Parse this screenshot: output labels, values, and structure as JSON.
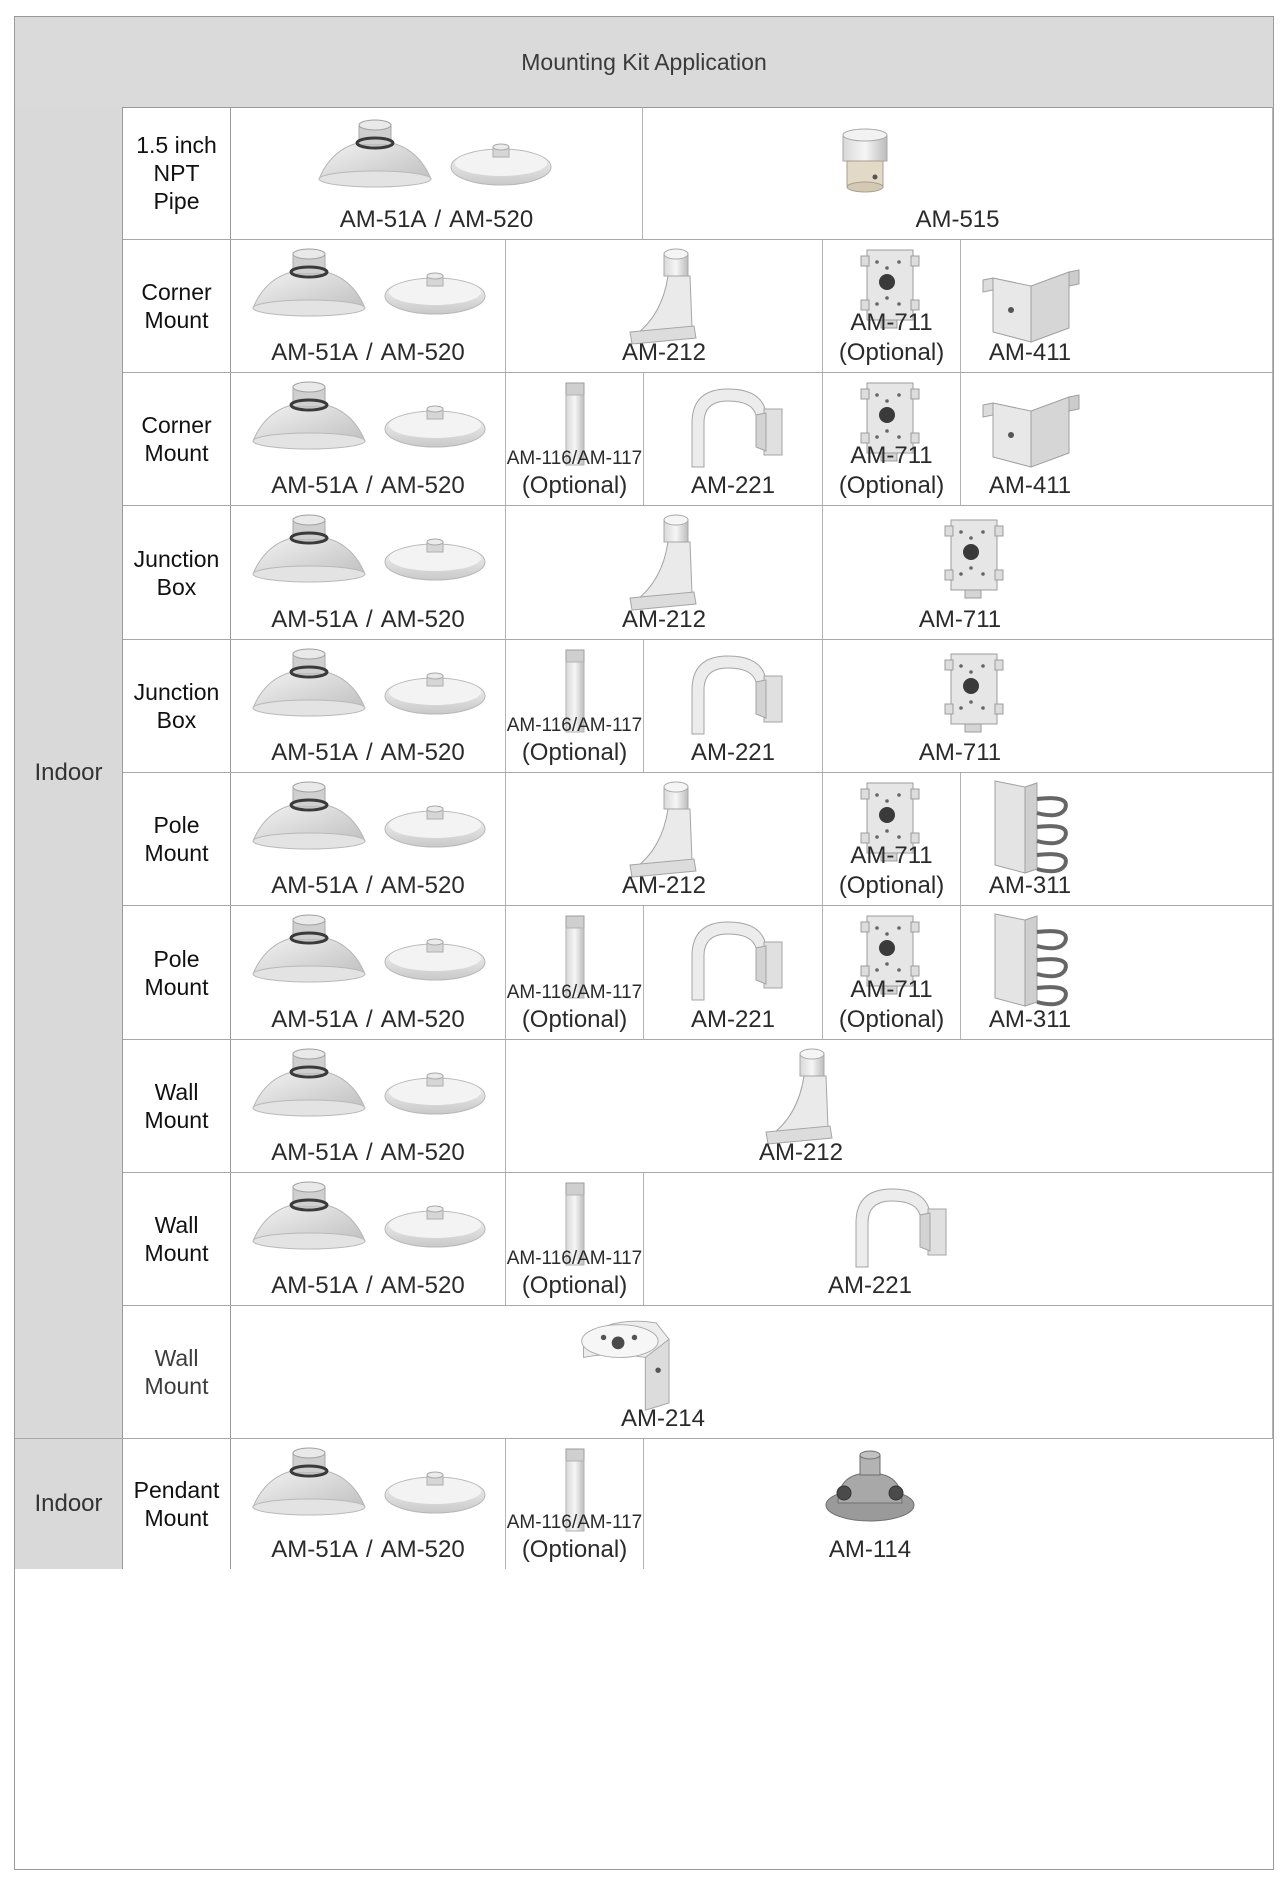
{
  "title": "Mounting Kit Application",
  "environment_labels": [
    "Indoor",
    "Indoor"
  ],
  "parts": {
    "am51a": "AM-51A",
    "slash": "/",
    "am520": "AM-520",
    "am515": "AM-515",
    "am212": "AM-212",
    "am711": "AM-711",
    "optional": "(Optional)",
    "am411": "AM-411",
    "am116_117": "AM-116/AM-117",
    "am221": "AM-221",
    "am311": "AM-311",
    "am214": "AM-214",
    "am114": "AM-114"
  },
  "rows": [
    {
      "type_line1": "1.5 inch",
      "type_line2": "NPT",
      "type_line3": "Pipe"
    },
    {
      "type_line1": "Corner",
      "type_line2": "Mount"
    },
    {
      "type_line1": "Corner",
      "type_line2": "Mount"
    },
    {
      "type_line1": "Junction",
      "type_line2": "Box"
    },
    {
      "type_line1": "Junction",
      "type_line2": "Box"
    },
    {
      "type_line1": "Pole",
      "type_line2": "Mount"
    },
    {
      "type_line1": "Pole",
      "type_line2": "Mount"
    },
    {
      "type_line1": "Wall",
      "type_line2": "Mount"
    },
    {
      "type_line1": "Wall",
      "type_line2": "Mount"
    },
    {
      "type_line1": "Wall",
      "type_line2": "Mount"
    },
    {
      "type_line1": "Pendant",
      "type_line2": "Mount"
    }
  ]
}
